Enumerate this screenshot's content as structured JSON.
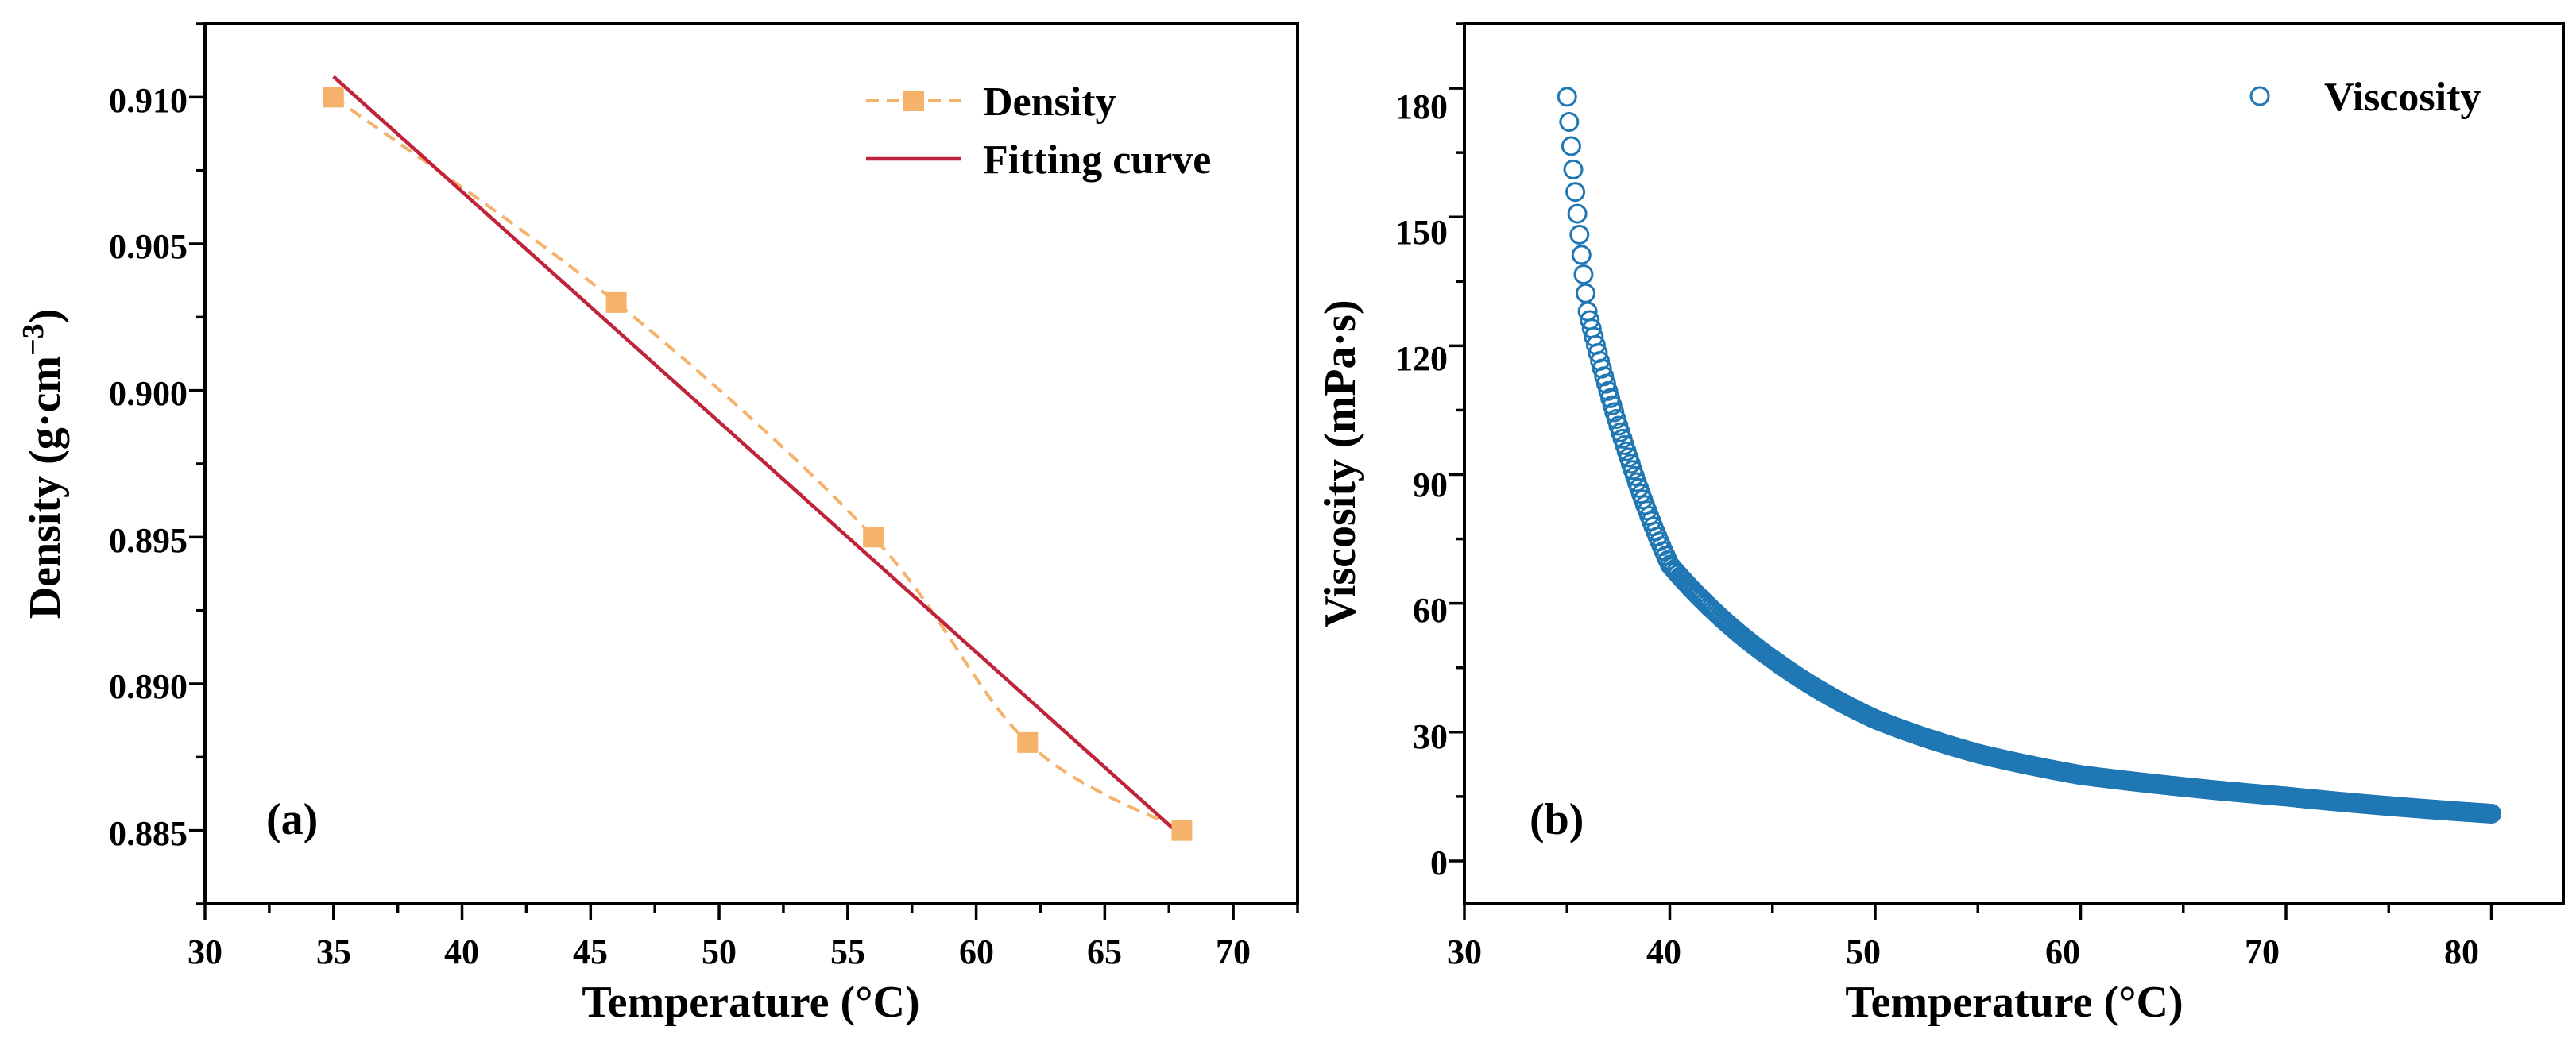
{
  "chart_data": [
    {
      "type": "line",
      "panel_label": "(a)",
      "xlabel": "Temperature (°C)",
      "ylabel_main": "Density (g·cm",
      "ylabel_sup": "−3",
      "ylabel_tail": ")",
      "xlim": [
        30,
        72.5
      ],
      "ylim": [
        0.8825,
        0.9125
      ],
      "xticks": [
        30,
        35,
        40,
        45,
        50,
        55,
        60,
        65,
        70
      ],
      "xtick_labels": [
        "30",
        "35",
        "40",
        "45",
        "50",
        "55",
        "60",
        "65",
        "70"
      ],
      "yticks": [
        0.885,
        0.89,
        0.895,
        0.9,
        0.905,
        0.91
      ],
      "ytick_labels": [
        "0.885",
        "0.890",
        "0.895",
        "0.900",
        "0.905",
        "0.910"
      ],
      "legend_position": "top-right",
      "series": [
        {
          "name": "Density",
          "style": "dashed-line-square-markers",
          "color": "#F5B26B",
          "x": [
            35,
            46,
            56,
            62,
            68
          ],
          "y": [
            0.91,
            0.903,
            0.895,
            0.888,
            0.885
          ]
        },
        {
          "name": "Fitting curve",
          "style": "solid-line",
          "color": "#C0243A",
          "x": [
            35,
            68
          ],
          "y": [
            0.9107,
            0.8848
          ]
        }
      ]
    },
    {
      "type": "scatter",
      "panel_label": "(b)",
      "xlabel": "Temperature (°C)",
      "ylabel": "Viscosity (mPa·s)",
      "xlim": [
        30,
        83.5
      ],
      "ylim": [
        -10,
        195
      ],
      "xticks": [
        30,
        40,
        50,
        60,
        70,
        80
      ],
      "xtick_labels": [
        "30",
        "40",
        "50",
        "60",
        "70",
        "80"
      ],
      "yticks": [
        0,
        30,
        60,
        90,
        120,
        150,
        180
      ],
      "ytick_labels": [
        "0",
        "30",
        "60",
        "90",
        "120",
        "150",
        "180"
      ],
      "legend_position": "top-right",
      "series": [
        {
          "name": "Viscosity",
          "style": "open-circle-markers",
          "color": "#1F77B4",
          "model": "power-law",
          "x_start": 35,
          "x_end": 80,
          "x_step": 0.1,
          "anchor_points": [
            [
              35,
              178
            ],
            [
              36,
              128
            ],
            [
              38,
              94
            ],
            [
              40,
              69
            ],
            [
              45,
              47
            ],
            [
              50,
              33
            ],
            [
              55,
              25
            ],
            [
              60,
              20
            ],
            [
              70,
              15
            ],
            [
              80,
              11
            ]
          ]
        }
      ]
    }
  ]
}
